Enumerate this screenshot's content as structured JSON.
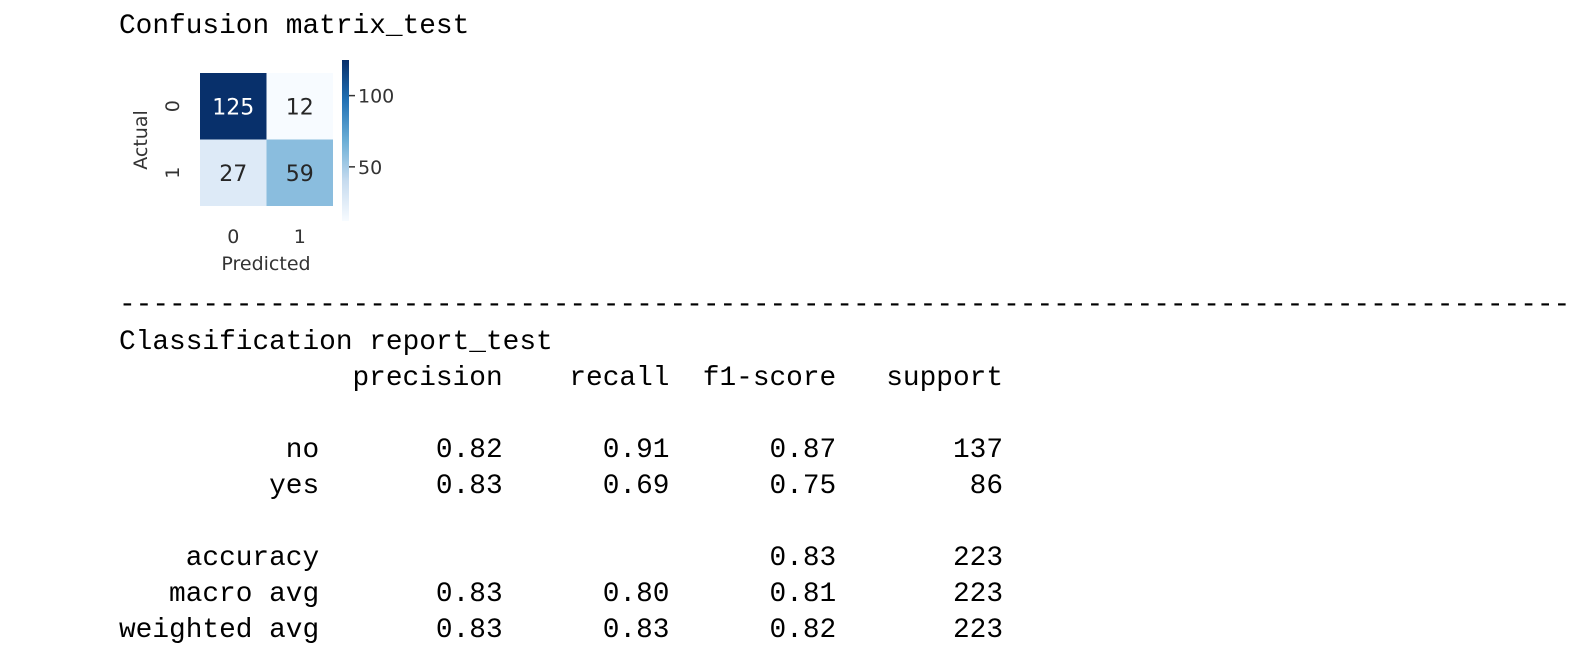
{
  "output": {
    "cm_title": "Confusion matrix_test",
    "separator": "----------------------------------------------------------------------------------------------------",
    "report_title": "Classification report_test"
  },
  "chart_data": {
    "type": "heatmap",
    "xlabel": "Predicted",
    "ylabel": "Actual",
    "x_categories": [
      "0",
      "1"
    ],
    "y_categories": [
      "0",
      "1"
    ],
    "values": [
      [
        125,
        12
      ],
      [
        27,
        59
      ]
    ],
    "colormap": "Blues",
    "colorbar": {
      "range": [
        12,
        125
      ],
      "ticks": [
        "100",
        "50"
      ],
      "tick_values": [
        100,
        50
      ]
    },
    "annotated": true
  },
  "report": {
    "header": [
      "",
      "precision",
      "recall",
      "f1-score",
      "support"
    ],
    "rows": [
      [
        "no",
        "0.82",
        "0.91",
        "0.87",
        "137"
      ],
      [
        "yes",
        "0.83",
        "0.69",
        "0.75",
        "86"
      ]
    ],
    "summary": [
      [
        "accuracy",
        "",
        "",
        "0.83",
        "223"
      ],
      [
        "macro avg",
        "0.83",
        "0.80",
        "0.81",
        "223"
      ],
      [
        "weighted avg",
        "0.83",
        "0.83",
        "0.82",
        "223"
      ]
    ]
  }
}
